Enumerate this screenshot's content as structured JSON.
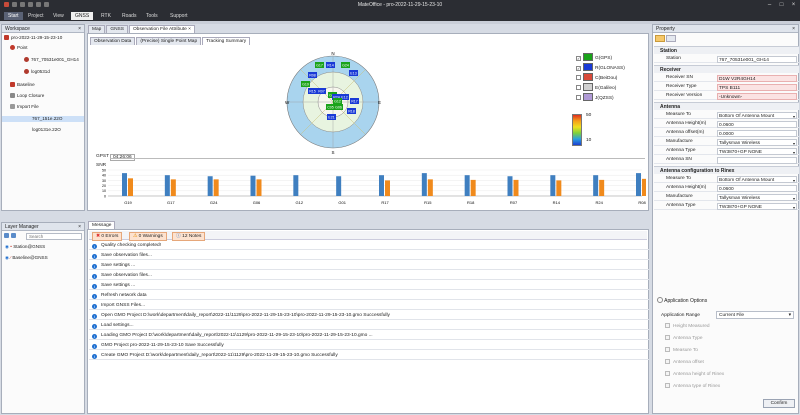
{
  "app": {
    "title": "MateOffice - pro-2022-11-29-15-23-10"
  },
  "menu": [
    "Start",
    "Project",
    "View",
    "GNSS",
    "RTK",
    "Roads",
    "Tools",
    "Support"
  ],
  "workspace": {
    "title": "Workspace",
    "items": [
      {
        "label": "pro-2022-11-29-15-23-10",
        "indent": 0
      },
      {
        "label": "Point",
        "indent": 1
      },
      {
        "label": "767_70531e001_GH14",
        "indent": 3
      },
      {
        "label": "log0531d",
        "indent": 3
      },
      {
        "label": "Baseline",
        "indent": 1
      },
      {
        "label": "Loop Closure",
        "indent": 1
      },
      {
        "label": "Import File",
        "indent": 1
      },
      {
        "label": "767_151e.22O",
        "indent": 2
      },
      {
        "label": "log0131e.22O",
        "indent": 2
      }
    ]
  },
  "layer_manager": {
    "title": "Layer Manager",
    "search_placeholder": "Search",
    "layers": [
      "Station@GNSS",
      "Baseline@GNSS"
    ]
  },
  "doc_tabs": [
    "Map",
    "GNSS",
    "Observation File Attribute"
  ],
  "sub_tabs": [
    "Observation Data",
    "(Precise) Single Point Map",
    "Tracking Summary"
  ],
  "skyplot": {
    "labels": [
      "N",
      "E",
      "S",
      "W"
    ],
    "sats": [
      "G17",
      "R14",
      "G24",
      "E13",
      "R08",
      "G19",
      "R15",
      "R07",
      "G01",
      "R24",
      "E12",
      "G12",
      "R17",
      "R18",
      "G06",
      "C05",
      "E21"
    ]
  },
  "legend": [
    {
      "label": "G(GPS)",
      "checked": true,
      "color": "#1aa31a"
    },
    {
      "label": "R(GLONASS)",
      "checked": true,
      "color": "#1a3ad6"
    },
    {
      "label": "C(BeiDou)",
      "checked": false,
      "color": "#d94a3a"
    },
    {
      "label": "E(Galileo)",
      "checked": false,
      "color": "#d0d0d0"
    },
    {
      "label": "J(QZSS)",
      "checked": false,
      "color": "#b09ad6"
    }
  ],
  "colorbar": {
    "max": "50",
    "min": "10"
  },
  "gps_time": {
    "label": "GPST",
    "value": "04:26:06"
  },
  "chart_data": {
    "type": "bar",
    "ylabel": "SNR",
    "yticks": [
      "0",
      "10",
      "20",
      "30",
      "40",
      "50"
    ],
    "ylim": [
      0,
      50
    ],
    "categories": [
      "G19",
      "G17",
      "G24",
      "G06",
      "G12",
      "G01",
      "R17",
      "R15",
      "R18",
      "R07",
      "R14",
      "R24",
      "R08"
    ],
    "series": [
      {
        "color": "#3f7fc0",
        "values": [
          44,
          40,
          38,
          39,
          40,
          38,
          40,
          44,
          40,
          38,
          40,
          40,
          44
        ]
      },
      {
        "color": "#f08a1c",
        "values": [
          34,
          32,
          32,
          32,
          0,
          0,
          30,
          32,
          31,
          31,
          30,
          31,
          33
        ]
      }
    ]
  },
  "messages": {
    "title": "Message",
    "filters": [
      "0 Errors",
      "0 Warnings",
      "12 Notes"
    ],
    "items": [
      "Quality checking completed!",
      "Save observation files...",
      "Save settings ...",
      "Save observation files...",
      "Save settings ...",
      "Refresh network data",
      "Import GNSS Files...",
      "Open GMO Project D:\\work\\department\\daily_report\\2022-11\\1129\\pro-2022-11-29-15-23-10\\pro-2022-11-29-15-23-10.gmo Successfully",
      "Load settings...",
      "Loading GMO Project D:\\work\\department\\daily_report\\2022-11\\1129\\pro-2022-11-29-15-23-10\\pro-2022-11-29-15-23-10.gmo ...",
      "GMO Project pro-2022-11-29-15-23-10 Save Successfully",
      "Create GMO Project D:\\work\\department\\daily_report\\2022-11\\1129\\pro-2022-11-29-15-23-10.gmo Successfully"
    ]
  },
  "property": {
    "title": "Property",
    "sections": [
      {
        "title": "Station",
        "rows": [
          {
            "k": "Station",
            "v": "767_70531e001_GH14",
            "dd": false,
            "red": false
          }
        ]
      },
      {
        "title": "Receiver",
        "rows": [
          {
            "k": "Receiver SN",
            "v": "D1W V2R4GH14",
            "dd": false,
            "red": true
          },
          {
            "k": "Receiver Type",
            "v": "TPS B111",
            "dd": false,
            "red": true
          },
          {
            "k": "Receiver Version",
            "v": "-Unknown-",
            "dd": false,
            "red": true
          }
        ]
      },
      {
        "title": "Antenna",
        "rows": [
          {
            "k": "Measure To",
            "v": "Bottom Of Antenna Mount",
            "dd": true,
            "red": false
          },
          {
            "k": "Antenna Height(m)",
            "v": "0.0600",
            "dd": false,
            "red": false
          },
          {
            "k": "Antenna offset(m)",
            "v": "0.0000",
            "dd": false,
            "red": false
          },
          {
            "k": "Manufacture",
            "v": "Tallysman Wireless",
            "dd": true,
            "red": false
          },
          {
            "k": "Antenna Type",
            "v": "TW3870+GP      NONE",
            "dd": true,
            "red": false
          },
          {
            "k": "Antenna SN",
            "v": "",
            "dd": false,
            "red": false
          }
        ]
      },
      {
        "title": "Antenna configuration to Rinex",
        "rows": [
          {
            "k": "Measure To",
            "v": "Bottom Of Antenna Mount",
            "dd": true,
            "red": false
          },
          {
            "k": "Antenna Height(m)",
            "v": "0.0600",
            "dd": false,
            "red": false
          },
          {
            "k": "Manufacture",
            "v": "Tallysman Wireless",
            "dd": true,
            "red": false
          },
          {
            "k": "Antenna Type",
            "v": "TW3870+GP      NONE",
            "dd": true,
            "red": false
          }
        ]
      }
    ]
  },
  "app_options": {
    "title": "Application Options",
    "range_label": "Application Range",
    "range_value": "Current File",
    "options": [
      "Height Measured",
      "Antenna Type",
      "Measure To",
      "Antenna offset",
      "Antenna height of Rinex",
      "Antenna type of Rinex"
    ],
    "confirm": "Confirm"
  }
}
